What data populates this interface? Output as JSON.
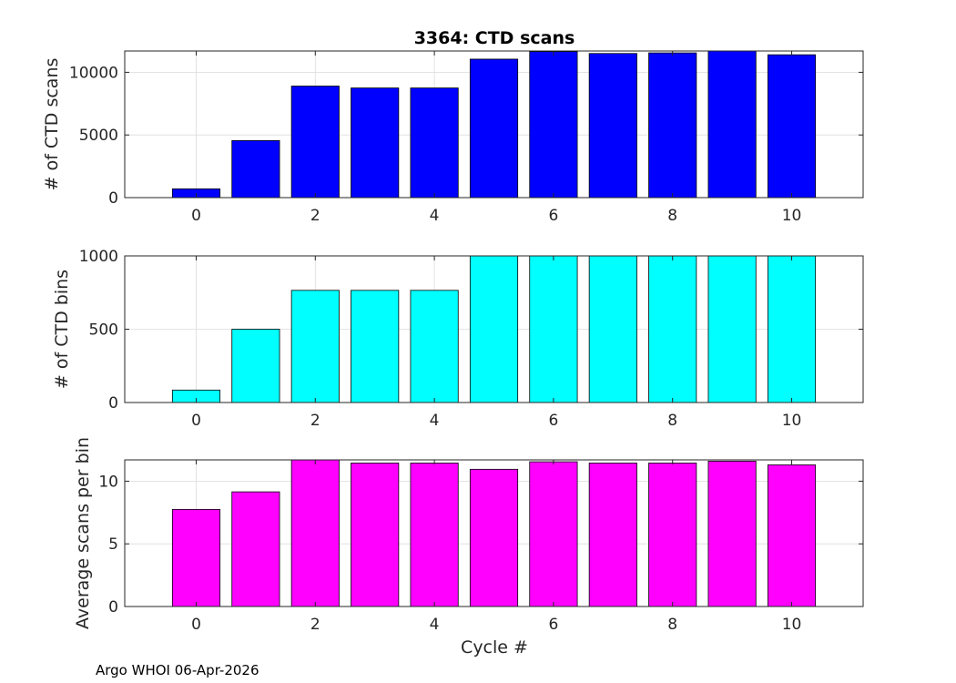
{
  "figure_title": "3364: CTD scans",
  "xlabel": "Cycle #",
  "footer": "Argo WHOI 06-Apr-2026",
  "chart_data": [
    {
      "type": "bar",
      "name": "scans",
      "title": "3364: CTD scans",
      "xlabel": "",
      "ylabel": "# of CTD scans",
      "x": [
        0,
        1,
        2,
        3,
        4,
        5,
        6,
        7,
        8,
        9,
        10
      ],
      "values": [
        700,
        4550,
        8900,
        8750,
        8750,
        11050,
        11650,
        11500,
        11550,
        11700,
        11400
      ],
      "xlim": [
        -1.2,
        11.2
      ],
      "ylim": [
        0,
        11700
      ],
      "xticks": [
        0,
        2,
        4,
        6,
        8,
        10
      ],
      "yticks": [
        0,
        5000,
        10000
      ],
      "color": "#0000ff",
      "grid": true
    },
    {
      "type": "bar",
      "name": "bins",
      "title": "",
      "xlabel": "",
      "ylabel": "# of CTD bins",
      "x": [
        0,
        1,
        2,
        3,
        4,
        5,
        6,
        7,
        8,
        9,
        10
      ],
      "values": [
        85,
        500,
        765,
        765,
        765,
        1000,
        1000,
        1000,
        1000,
        1000,
        1000
      ],
      "xlim": [
        -1.2,
        11.2
      ],
      "ylim": [
        0,
        1000
      ],
      "xticks": [
        0,
        2,
        4,
        6,
        8,
        10
      ],
      "yticks": [
        0,
        500,
        1000
      ],
      "color": "#00ffff",
      "grid": true
    },
    {
      "type": "bar",
      "name": "avg",
      "title": "",
      "xlabel": "Cycle #",
      "ylabel": "Average scans per bin",
      "x": [
        0,
        1,
        2,
        3,
        4,
        5,
        6,
        7,
        8,
        9,
        10
      ],
      "values": [
        7.75,
        9.15,
        11.7,
        11.45,
        11.45,
        10.95,
        11.55,
        11.45,
        11.45,
        11.6,
        11.3
      ],
      "xlim": [
        -1.2,
        11.2
      ],
      "ylim": [
        0,
        11.7
      ],
      "xticks": [
        0,
        2,
        4,
        6,
        8,
        10
      ],
      "yticks": [
        0,
        5,
        10
      ],
      "color": "#ff00ff",
      "grid": true
    }
  ]
}
